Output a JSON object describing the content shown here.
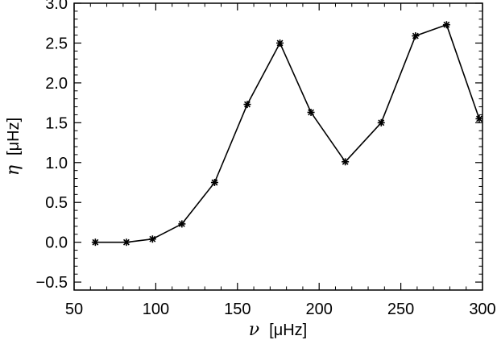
{
  "chart_data": {
    "type": "line",
    "marker": "asterisk",
    "color": "#000000",
    "xlabel": {
      "symbol": "ν",
      "unit": "[μHz]"
    },
    "ylabel": {
      "symbol": "η",
      "unit": "[μHz]"
    },
    "xlim": [
      50,
      300
    ],
    "ylim": [
      -0.6,
      3.0
    ],
    "xticks": [
      50,
      100,
      150,
      200,
      250,
      300
    ],
    "xtick_labels": [
      "50",
      "100",
      "150",
      "200",
      "250",
      "300"
    ],
    "yticks": [
      -0.5,
      0.0,
      0.5,
      1.0,
      1.5,
      2.0,
      2.5,
      3.0
    ],
    "ytick_labels": [
      "−0.5",
      "0.0",
      "0.5",
      "1.0",
      "1.5",
      "2.0",
      "2.5",
      "3.0"
    ],
    "grid": false,
    "series": [
      {
        "x": [
          63,
          82,
          98,
          116,
          136,
          156,
          176,
          195,
          216,
          238,
          259,
          278,
          298
        ],
        "y": [
          0.0,
          0.0,
          0.04,
          0.23,
          0.75,
          1.73,
          2.5,
          1.63,
          1.01,
          1.5,
          2.59,
          2.73,
          1.55
        ]
      }
    ]
  }
}
